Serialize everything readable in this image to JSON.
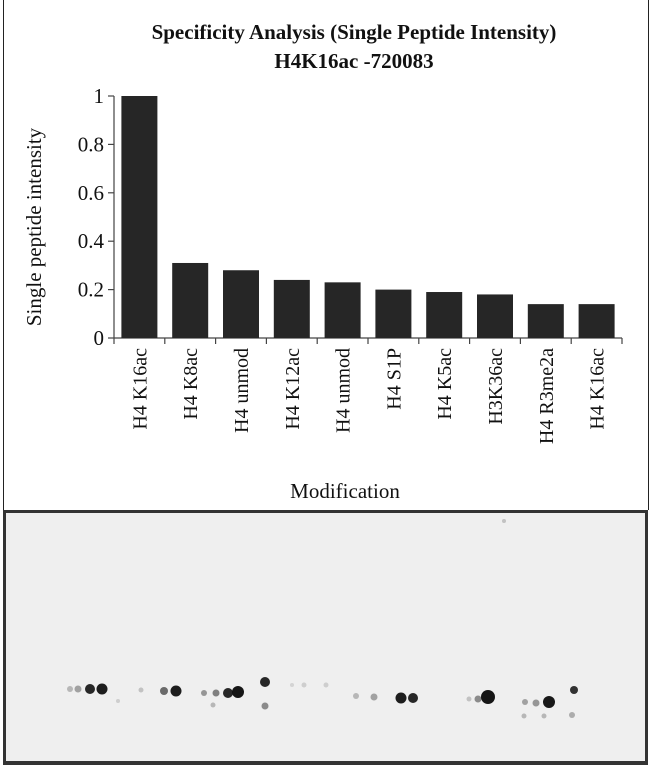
{
  "chart_data": {
    "type": "bar",
    "title": "Specificity Analysis  (Single Peptide  Intensity)",
    "subtitle": "H4K16ac -720083",
    "xlabel": "Modification",
    "ylabel": "Single peptide intensity",
    "categories": [
      "H4 K16ac",
      "H4 K8ac",
      "H4 unmod",
      "H4 K12ac",
      "H4 unmod",
      "H4 S1P",
      "H4 K5ac",
      "H3K36ac",
      "H4 R3me2a",
      "H4 K16ac"
    ],
    "values": [
      1.0,
      0.31,
      0.28,
      0.24,
      0.23,
      0.2,
      0.19,
      0.18,
      0.14,
      0.14
    ],
    "ylim": [
      0,
      1
    ],
    "yticks": [
      "0",
      "0.2",
      "0.4",
      "0.6",
      "0.8",
      "1"
    ],
    "grid": false,
    "bar_color": "#262626"
  },
  "blot": {
    "background": "#efefef",
    "spot_color": "#111111"
  }
}
